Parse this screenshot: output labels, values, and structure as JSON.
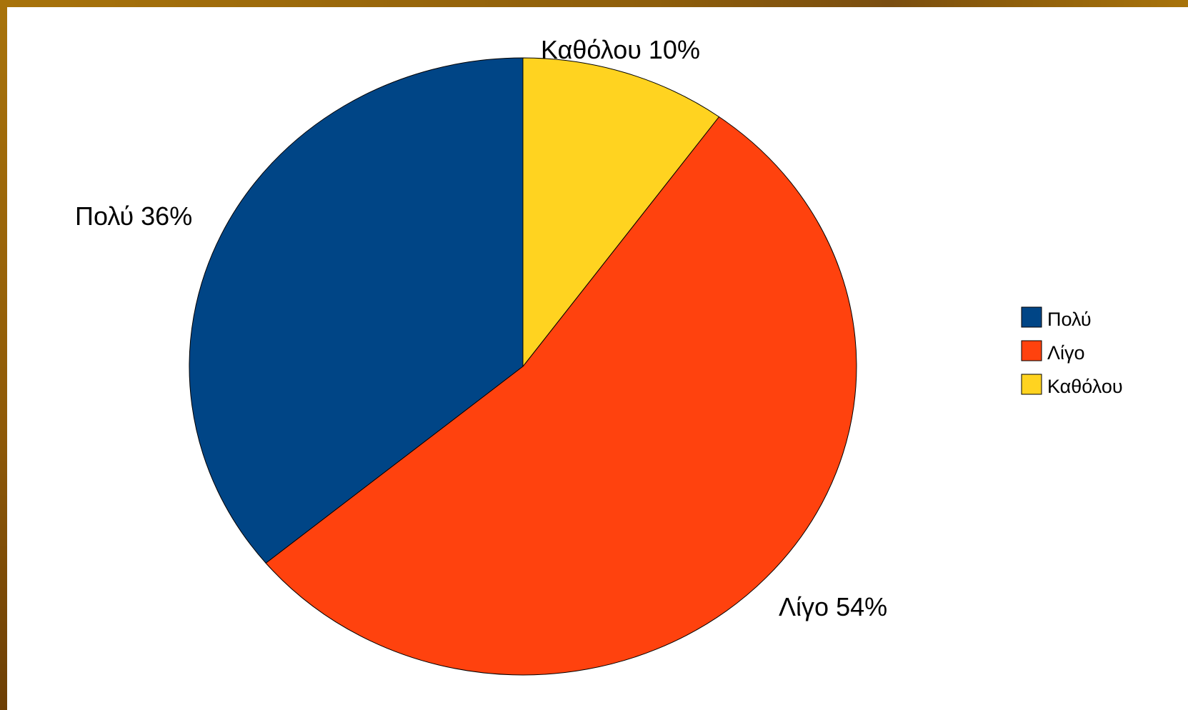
{
  "chart_data": {
    "type": "pie",
    "categories": [
      "Πολύ",
      "Λίγο",
      "Καθόλου"
    ],
    "values": [
      36,
      54,
      10
    ],
    "colors": [
      "#004586",
      "#ff420e",
      "#ffd320"
    ],
    "slice_labels": [
      "Πολύ 36%",
      "Λίγο 54%",
      "Καθόλου 10%"
    ],
    "legend": {
      "position": "right",
      "entries": [
        "Πολύ",
        "Λίγο",
        "Καθόλου"
      ]
    },
    "start": "12 o'clock",
    "direction": "counterclockwise from Πολύ"
  }
}
